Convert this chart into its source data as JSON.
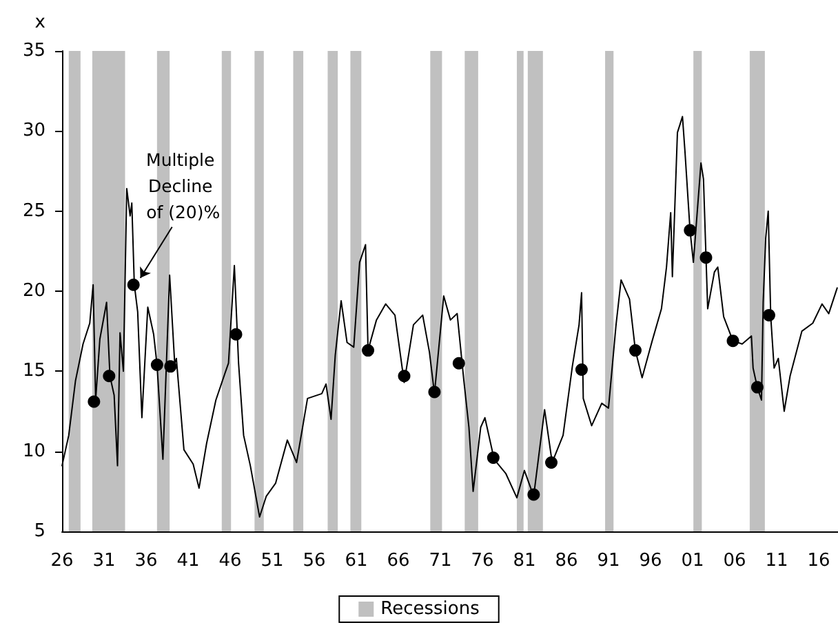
{
  "chart_data": {
    "type": "line",
    "ylabel": "x",
    "xlim": [
      1926,
      2018.3
    ],
    "xticks": [
      {
        "value": 1926,
        "label": "26"
      },
      {
        "value": 1931,
        "label": "31"
      },
      {
        "value": 1936,
        "label": "36"
      },
      {
        "value": 1941,
        "label": "41"
      },
      {
        "value": 1946,
        "label": "46"
      },
      {
        "value": 1951,
        "label": "51"
      },
      {
        "value": 1956,
        "label": "56"
      },
      {
        "value": 1961,
        "label": "61"
      },
      {
        "value": 1966,
        "label": "66"
      },
      {
        "value": 1971,
        "label": "71"
      },
      {
        "value": 1976,
        "label": "76"
      },
      {
        "value": 1981,
        "label": "81"
      },
      {
        "value": 1986,
        "label": "86"
      },
      {
        "value": 1991,
        "label": "91"
      },
      {
        "value": 1996,
        "label": "96"
      },
      {
        "value": 2001,
        "label": "01"
      },
      {
        "value": 2006,
        "label": "06"
      },
      {
        "value": 2011,
        "label": "11"
      },
      {
        "value": 2016,
        "label": "16"
      }
    ],
    "ylim": [
      5,
      35
    ],
    "yticks": [
      5,
      10,
      15,
      20,
      25,
      30,
      35
    ],
    "grid": false,
    "legend": "bottom",
    "series": [
      {
        "color": "#000000",
        "marker": "none",
        "x": [
          1926.0,
          1926.8,
          1927.6,
          1928.5,
          1929.3,
          1929.7,
          1930.0,
          1930.5,
          1931.3,
          1931.7,
          1932.2,
          1932.6,
          1932.9,
          1933.3,
          1933.7,
          1934.1,
          1934.3,
          1934.6,
          1935.0,
          1935.5,
          1936.2,
          1936.9,
          1937.3,
          1938.0,
          1938.8,
          1939.4,
          1939.6,
          1940.5,
          1941.6,
          1942.3,
          1943.2,
          1944.3,
          1945.4,
          1945.8,
          1946.5,
          1947.0,
          1947.6,
          1948.4,
          1949.5,
          1950.3,
          1951.4,
          1952.8,
          1953.9,
          1955.2,
          1956.9,
          1957.4,
          1958.0,
          1958.5,
          1959.2,
          1959.9,
          1960.7,
          1961.4,
          1962.1,
          1962.4,
          1963.4,
          1964.5,
          1965.6,
          1966.7,
          1967.8,
          1968.9,
          1969.7,
          1970.3,
          1971.4,
          1972.2,
          1973.0,
          1973.8,
          1974.4,
          1974.9,
          1975.8,
          1976.3,
          1977.4,
          1978.8,
          1980.1,
          1981.0,
          1982.1,
          1983.4,
          1984.3,
          1985.6,
          1986.7,
          1987.5,
          1987.8,
          1988.0,
          1989.0,
          1990.2,
          1991.0,
          1991.9,
          1992.5,
          1993.5,
          1994.2,
          1995.0,
          1996.2,
          1997.3,
          1997.9,
          1998.4,
          1998.6,
          1999.2,
          1999.8,
          2000.1,
          2000.7,
          2001.1,
          2002.0,
          2002.3,
          2002.6,
          2002.8,
          2003.6,
          2004.0,
          2004.7,
          2005.8,
          2006.9,
          2008.0,
          2008.2,
          2008.7,
          2009.2,
          2009.4,
          2009.7,
          2010.0,
          2010.3,
          2010.7,
          2011.2,
          2011.9,
          2012.6,
          2014.0,
          2015.3,
          2016.4,
          2017.2,
          2018.2
        ],
        "values": [
          9.1,
          11.0,
          14.4,
          16.7,
          18.0,
          20.4,
          13.2,
          17.0,
          19.3,
          14.7,
          13.5,
          9.1,
          17.4,
          15.0,
          26.4,
          24.7,
          25.5,
          20.4,
          18.7,
          12.1,
          19.0,
          17.3,
          15.4,
          9.5,
          21.0,
          15.5,
          15.8,
          10.1,
          9.2,
          7.7,
          10.5,
          13.2,
          14.9,
          15.5,
          21.6,
          15.5,
          11.0,
          9.1,
          5.9,
          7.2,
          8.0,
          10.7,
          9.3,
          13.3,
          13.6,
          14.2,
          12.0,
          16.0,
          19.4,
          16.8,
          16.5,
          21.8,
          22.9,
          16.3,
          18.2,
          19.2,
          18.5,
          14.3,
          17.9,
          18.5,
          16.2,
          13.6,
          19.7,
          18.2,
          18.6,
          14.4,
          11.5,
          7.5,
          11.5,
          12.1,
          9.5,
          8.6,
          7.1,
          8.8,
          7.2,
          12.6,
          9.3,
          11.0,
          15.3,
          17.9,
          19.9,
          13.3,
          11.6,
          13.0,
          12.7,
          17.9,
          20.7,
          19.5,
          16.3,
          14.6,
          16.9,
          18.9,
          21.5,
          24.9,
          20.9,
          29.9,
          30.9,
          28.7,
          23.8,
          21.8,
          28.0,
          27.0,
          22.1,
          18.9,
          21.2,
          21.5,
          18.4,
          16.9,
          16.7,
          17.2,
          15.2,
          14.0,
          13.2,
          19.3,
          23.3,
          25.0,
          18.4,
          15.2,
          15.8,
          12.5,
          14.7,
          17.5,
          18.0,
          19.2,
          18.6,
          20.2
        ]
      },
      {
        "type": "scatter",
        "color": "#000000",
        "marker": "circle",
        "x": [
          1929.8,
          1931.6,
          1934.5,
          1937.3,
          1938.9,
          1946.7,
          1962.4,
          1966.7,
          1970.3,
          1973.2,
          1977.3,
          1982.1,
          1984.2,
          1987.8,
          1994.2,
          2000.7,
          2002.6,
          2005.8,
          2008.7,
          2010.1
        ],
        "values": [
          13.1,
          14.7,
          20.4,
          15.4,
          15.3,
          17.3,
          16.3,
          14.7,
          13.7,
          15.5,
          9.6,
          7.3,
          9.3,
          15.1,
          16.3,
          23.8,
          22.1,
          16.9,
          14.0,
          18.5
        ]
      }
    ],
    "bands": [
      {
        "axis": "x",
        "from": 1926.8,
        "to": 1928.2,
        "label": "Recessions",
        "color": "#c0c0c0"
      },
      {
        "axis": "x",
        "from": 1929.6,
        "to": 1933.5,
        "color": "#c0c0c0"
      },
      {
        "axis": "x",
        "from": 1937.3,
        "to": 1938.8,
        "color": "#c0c0c0"
      },
      {
        "axis": "x",
        "from": 1945.0,
        "to": 1946.1,
        "color": "#c0c0c0"
      },
      {
        "axis": "x",
        "from": 1948.9,
        "to": 1950.0,
        "color": "#c0c0c0"
      },
      {
        "axis": "x",
        "from": 1953.5,
        "to": 1954.7,
        "color": "#c0c0c0"
      },
      {
        "axis": "x",
        "from": 1957.6,
        "to": 1958.8,
        "color": "#c0c0c0"
      },
      {
        "axis": "x",
        "from": 1960.3,
        "to": 1961.6,
        "color": "#c0c0c0"
      },
      {
        "axis": "x",
        "from": 1969.8,
        "to": 1971.2,
        "color": "#c0c0c0"
      },
      {
        "axis": "x",
        "from": 1973.9,
        "to": 1975.5,
        "color": "#c0c0c0"
      },
      {
        "axis": "x",
        "from": 1980.1,
        "to": 1980.9,
        "color": "#c0c0c0"
      },
      {
        "axis": "x",
        "from": 1981.4,
        "to": 1983.2,
        "color": "#c0c0c0"
      },
      {
        "axis": "x",
        "from": 1990.6,
        "to": 1991.6,
        "color": "#c0c0c0"
      },
      {
        "axis": "x",
        "from": 2001.1,
        "to": 2002.1,
        "color": "#c0c0c0"
      },
      {
        "axis": "x",
        "from": 2007.8,
        "to": 2009.6,
        "color": "#c0c0c0"
      }
    ],
    "annotations": [
      {
        "text": "Multiple Decline of (20)%",
        "x": 1934.5,
        "y": 20.4
      }
    ]
  }
}
